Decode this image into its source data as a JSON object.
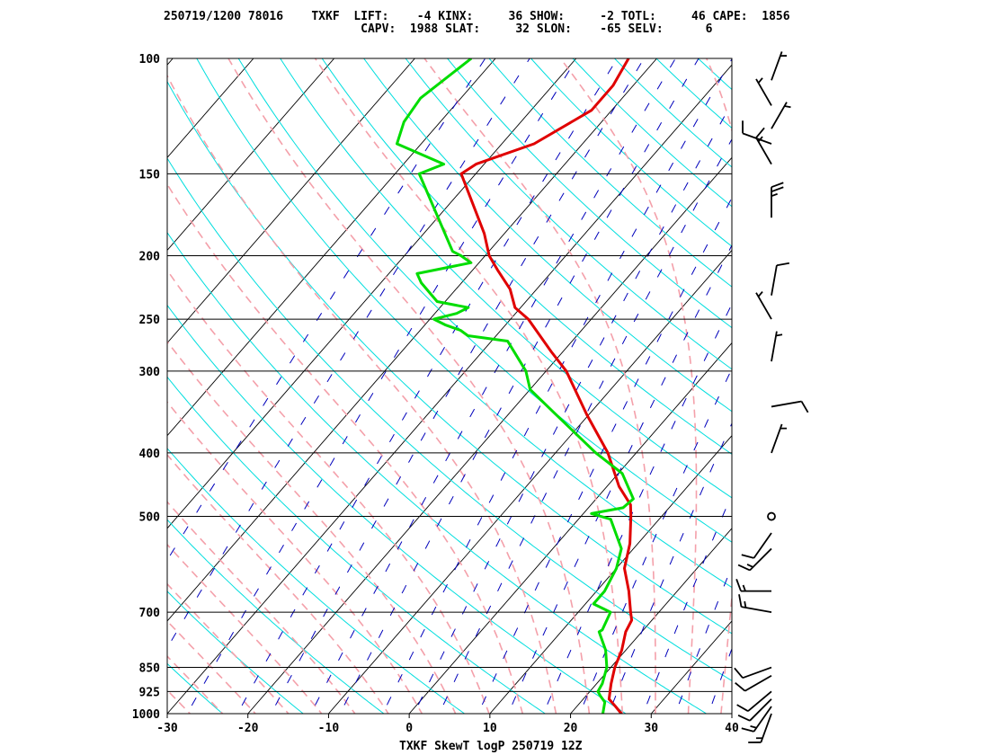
{
  "header": {
    "line1": "250719/1200 78016    TXKF  LIFT:    -4 KINX:     36 SHOW:     -2 TOTL:     46 CAPE:  1856",
    "line2": "                            CAPV:  1988 SLAT:     32 SLON:    -65 SELV:      6"
  },
  "caption": "TXKF SkewT logP 250719 12Z",
  "chart_data": {
    "type": "line",
    "title": "TXKF SkewT logP 250719 12Z",
    "xlabel": "",
    "ylabel": "",
    "xlim": [
      -30,
      40
    ],
    "ylim": [
      1000,
      100
    ],
    "y_scale": "log (inverted)",
    "grid": true,
    "x_ticks": [
      -30,
      -20,
      -10,
      0,
      10,
      20,
      30,
      40
    ],
    "x_tick_labels": [
      "-30",
      "-20",
      "-10",
      "0",
      "10",
      "20",
      "30",
      "40"
    ],
    "y_ticks": [
      100,
      150,
      200,
      250,
      300,
      400,
      500,
      700,
      850,
      925,
      1000
    ],
    "y_tick_labels": [
      "100",
      "150",
      "200",
      "250",
      "300",
      "400",
      "500",
      "700",
      "850",
      "925",
      "1000"
    ],
    "colors": {
      "temperature": "#e00000",
      "dewpoint": "#00dd00",
      "isotherm": "#000000",
      "dry_adiabat": "#00dede",
      "moist_adiabat": "#f4a0aa",
      "mixing_ratio": "#0000bb",
      "wind_barb": "#000000"
    },
    "series": [
      {
        "id": "temperature",
        "points": [
          {
            "p": 1000,
            "t": 26.3
          },
          {
            "p": 975,
            "t": 24.8
          },
          {
            "p": 950,
            "t": 23.2
          },
          {
            "p": 925,
            "t": 22.5
          },
          {
            "p": 900,
            "t": 21.8
          },
          {
            "p": 850,
            "t": 20.5
          },
          {
            "p": 800,
            "t": 19.5
          },
          {
            "p": 750,
            "t": 18.0
          },
          {
            "p": 720,
            "t": 17.5
          },
          {
            "p": 700,
            "t": 16.5
          },
          {
            "p": 650,
            "t": 14.0
          },
          {
            "p": 600,
            "t": 11.0
          },
          {
            "p": 550,
            "t": 9.0
          },
          {
            "p": 500,
            "t": 6.2
          },
          {
            "p": 480,
            "t": 4.9
          },
          {
            "p": 450,
            "t": 1.5
          },
          {
            "p": 400,
            "t": -3.5
          },
          {
            "p": 350,
            "t": -10.2
          },
          {
            "p": 300,
            "t": -17.5
          },
          {
            "p": 280,
            "t": -21.5
          },
          {
            "p": 250,
            "t": -27.8
          },
          {
            "p": 240,
            "t": -30.7
          },
          {
            "p": 225,
            "t": -33.3
          },
          {
            "p": 210,
            "t": -37.0
          },
          {
            "p": 200,
            "t": -39.5
          },
          {
            "p": 185,
            "t": -42.5
          },
          {
            "p": 150,
            "t": -51.8
          },
          {
            "p": 145,
            "t": -51.0
          },
          {
            "p": 135,
            "t": -46.0
          },
          {
            "p": 120,
            "t": -42.5
          },
          {
            "p": 110,
            "t": -42.5
          },
          {
            "p": 100,
            "t": -43.5
          }
        ]
      },
      {
        "id": "dewpoint",
        "points": [
          {
            "p": 1000,
            "t": 24.0
          },
          {
            "p": 960,
            "t": 23.0
          },
          {
            "p": 940,
            "t": 21.8
          },
          {
            "p": 925,
            "t": 21.0
          },
          {
            "p": 900,
            "t": 20.7
          },
          {
            "p": 850,
            "t": 19.5
          },
          {
            "p": 800,
            "t": 17.5
          },
          {
            "p": 750,
            "t": 14.7
          },
          {
            "p": 745,
            "t": 14.9
          },
          {
            "p": 700,
            "t": 14.0
          },
          {
            "p": 680,
            "t": 11.0
          },
          {
            "p": 650,
            "t": 11.0
          },
          {
            "p": 600,
            "t": 10.0
          },
          {
            "p": 560,
            "t": 8.5
          },
          {
            "p": 505,
            "t": 4.0
          },
          {
            "p": 495,
            "t": 1.0
          },
          {
            "p": 485,
            "t": 4.3
          },
          {
            "p": 470,
            "t": 4.6
          },
          {
            "p": 430,
            "t": 0.5
          },
          {
            "p": 400,
            "t": -5.0
          },
          {
            "p": 350,
            "t": -14.0
          },
          {
            "p": 320,
            "t": -20.0
          },
          {
            "p": 300,
            "t": -22.5
          },
          {
            "p": 270,
            "t": -28.0
          },
          {
            "p": 265,
            "t": -33.5
          },
          {
            "p": 260,
            "t": -35.0
          },
          {
            "p": 255,
            "t": -37.5
          },
          {
            "p": 250,
            "t": -39.5
          },
          {
            "p": 245,
            "t": -37.3
          },
          {
            "p": 240,
            "t": -36.5
          },
          {
            "p": 235,
            "t": -41.0
          },
          {
            "p": 220,
            "t": -45.0
          },
          {
            "p": 213,
            "t": -46.5
          },
          {
            "p": 205,
            "t": -41.0
          },
          {
            "p": 200,
            "t": -43.0
          },
          {
            "p": 197,
            "t": -44.5
          },
          {
            "p": 150,
            "t": -57.0
          },
          {
            "p": 145,
            "t": -55.0
          },
          {
            "p": 135,
            "t": -63.0
          },
          {
            "p": 125,
            "t": -64.5
          },
          {
            "p": 115,
            "t": -65.0
          },
          {
            "p": 100,
            "t": -63.0
          }
        ]
      }
    ],
    "wind_barbs": [
      {
        "p": 1000,
        "dir": 200,
        "speed": 15
      },
      {
        "p": 975,
        "dir": 215,
        "speed": 15
      },
      {
        "p": 950,
        "dir": 225,
        "speed": 10
      },
      {
        "p": 925,
        "dir": 230,
        "speed": 10
      },
      {
        "p": 875,
        "dir": 240,
        "speed": 10
      },
      {
        "p": 850,
        "dir": 250,
        "speed": 10
      },
      {
        "p": 700,
        "dir": 280,
        "speed": 15
      },
      {
        "p": 650,
        "dir": 270,
        "speed": 15
      },
      {
        "p": 560,
        "dir": 225,
        "speed": 15
      },
      {
        "p": 530,
        "dir": 215,
        "speed": 10
      },
      {
        "p": 500,
        "dir": 0,
        "speed": 0
      },
      {
        "p": 400,
        "dir": 20,
        "speed": 5
      },
      {
        "p": 340,
        "dir": 80,
        "speed": 10
      },
      {
        "p": 290,
        "dir": 10,
        "speed": 5
      },
      {
        "p": 250,
        "dir": 330,
        "speed": 5
      },
      {
        "p": 230,
        "dir": 10,
        "speed": 10
      },
      {
        "p": 175,
        "dir": 0,
        "speed": 25
      },
      {
        "p": 145,
        "dir": 330,
        "speed": 15
      },
      {
        "p": 135,
        "dir": 290,
        "speed": 10
      },
      {
        "p": 128,
        "dir": 30,
        "speed": 5
      },
      {
        "p": 118,
        "dir": 330,
        "speed": 5
      },
      {
        "p": 108,
        "dir": 20,
        "speed": 5
      }
    ]
  }
}
